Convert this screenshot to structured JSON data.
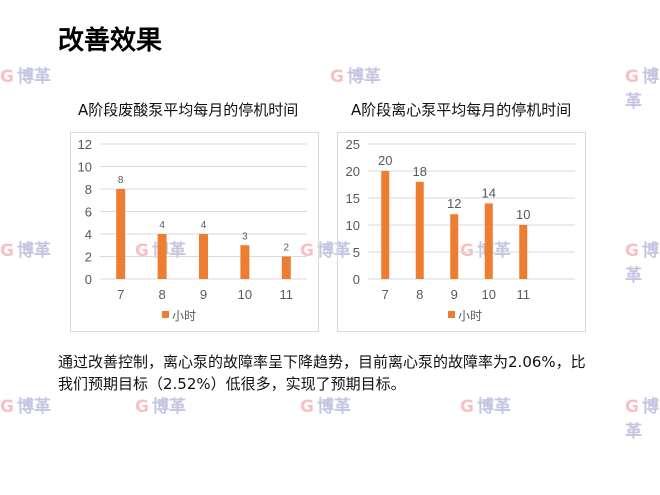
{
  "slide": {
    "title": "改善效果",
    "body": "通过改善控制，离心泵的故障率呈下降趋势，目前离心泵的故障率为2.06%，比我们预期目标（2.52%）低很多，实现了预期目标。",
    "watermark": "博革"
  },
  "colors": {
    "bar": "#ED7D31",
    "grid": "#d9d9d9",
    "axis_text": "#595959"
  },
  "chart_data": [
    {
      "type": "bar",
      "title": "A阶段废酸泵平均每月的停机时间",
      "categories": [
        "7",
        "8",
        "9",
        "10",
        "11"
      ],
      "series": [
        {
          "name": "小时",
          "values": [
            8,
            4,
            4,
            3,
            2
          ]
        }
      ],
      "ylim": [
        0,
        12
      ],
      "yticks": [
        "0",
        "2",
        "4",
        "6",
        "8",
        "10",
        "12"
      ],
      "data_labels": true,
      "grid": true,
      "legend": "bottom"
    },
    {
      "type": "bar",
      "title": "A阶段离心泵平均每月的停机时间",
      "categories": [
        "7",
        "8",
        "9",
        "10",
        "11"
      ],
      "series": [
        {
          "name": "小时",
          "values": [
            20,
            18,
            12,
            14,
            10
          ]
        }
      ],
      "ylim": [
        0,
        25
      ],
      "yticks": [
        "0",
        "5",
        "10",
        "15",
        "20",
        "25"
      ],
      "data_labels": true,
      "grid": true,
      "legend": "bottom"
    }
  ]
}
